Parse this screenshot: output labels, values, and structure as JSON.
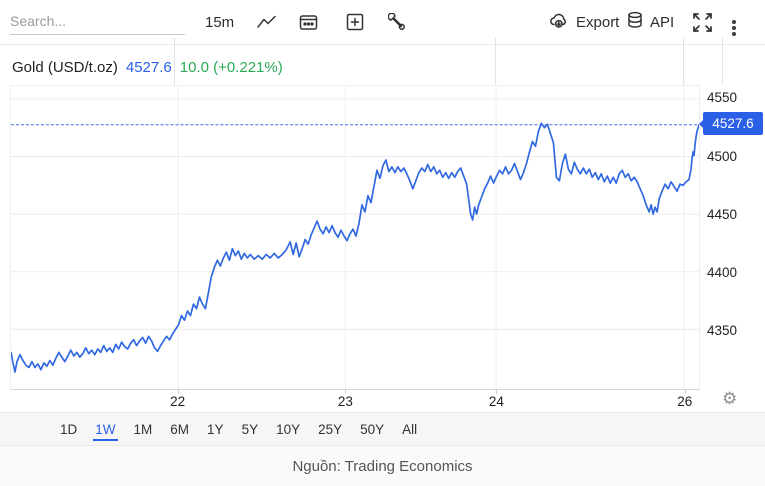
{
  "toolbar": {
    "search_placeholder": "Search...",
    "interval_label": "15m",
    "export_label": "Export",
    "api_label": "API",
    "icons": [
      "line-chart",
      "calendar",
      "add-panel",
      "tools-wrench",
      "export-cloud",
      "api-database",
      "fullscreen",
      "more-options"
    ]
  },
  "header": {
    "instrument": "Gold (USD/t.oz)",
    "price": "4527.6",
    "change": "10.0 (+0.221%)"
  },
  "chart_data": {
    "type": "line",
    "title": "Gold (USD/t.oz)",
    "interval": "15m",
    "range": "1W",
    "last_price": 4527.6,
    "change": 10.0,
    "change_pct": "+0.221%",
    "ylim": [
      4298.3,
      4561.2
    ],
    "y_ticks": [
      4550,
      4500,
      4450,
      4400,
      4350
    ],
    "x_ticks": [
      {
        "label": "22",
        "f": 0.243
      },
      {
        "label": "23",
        "f": 0.486
      },
      {
        "label": "24",
        "f": 0.705
      },
      {
        "label": "26",
        "f": 0.978
      }
    ],
    "grid": true,
    "dashed_last_price_line": true,
    "line_color": "#3169e0",
    "accent_color": "#2b5fe8",
    "up_color": "#2aab56",
    "series": [
      [
        0,
        4330
      ],
      [
        2,
        4321
      ],
      [
        4,
        4313
      ],
      [
        6,
        4322
      ],
      [
        9,
        4328
      ],
      [
        12,
        4323
      ],
      [
        15,
        4319
      ],
      [
        18,
        4317
      ],
      [
        21,
        4322
      ],
      [
        24,
        4317
      ],
      [
        27,
        4320
      ],
      [
        30,
        4315
      ],
      [
        33,
        4321
      ],
      [
        36,
        4318
      ],
      [
        39,
        4323
      ],
      [
        42,
        4319
      ],
      [
        45,
        4325
      ],
      [
        48,
        4330
      ],
      [
        51,
        4326
      ],
      [
        54,
        4322
      ],
      [
        57,
        4327
      ],
      [
        60,
        4332
      ],
      [
        63,
        4327
      ],
      [
        66,
        4330
      ],
      [
        69,
        4326
      ],
      [
        72,
        4329
      ],
      [
        75,
        4334
      ],
      [
        78,
        4329
      ],
      [
        81,
        4332
      ],
      [
        84,
        4328
      ],
      [
        87,
        4333
      ],
      [
        90,
        4330
      ],
      [
        93,
        4336
      ],
      [
        96,
        4331
      ],
      [
        99,
        4334
      ],
      [
        102,
        4330
      ],
      [
        105,
        4337
      ],
      [
        108,
        4333
      ],
      [
        111,
        4339
      ],
      [
        114,
        4335
      ],
      [
        117,
        4333
      ],
      [
        120,
        4338
      ],
      [
        123,
        4341
      ],
      [
        126,
        4336
      ],
      [
        129,
        4340
      ],
      [
        132,
        4343
      ],
      [
        135,
        4338
      ],
      [
        138,
        4344
      ],
      [
        141,
        4340
      ],
      [
        144,
        4334
      ],
      [
        147,
        4331
      ],
      [
        150,
        4336
      ],
      [
        153,
        4340
      ],
      [
        156,
        4344
      ],
      [
        159,
        4341
      ],
      [
        162,
        4346
      ],
      [
        165,
        4350
      ],
      [
        168,
        4354
      ],
      [
        171,
        4362
      ],
      [
        174,
        4358
      ],
      [
        177,
        4366
      ],
      [
        180,
        4362
      ],
      [
        183,
        4372
      ],
      [
        186,
        4368
      ],
      [
        189,
        4378
      ],
      [
        192,
        4372
      ],
      [
        195,
        4368
      ],
      [
        198,
        4382
      ],
      [
        201,
        4396
      ],
      [
        204,
        4404
      ],
      [
        207,
        4410
      ],
      [
        210,
        4405
      ],
      [
        213,
        4412
      ],
      [
        216,
        4417
      ],
      [
        219,
        4410
      ],
      [
        222,
        4420
      ],
      [
        225,
        4414
      ],
      [
        228,
        4418
      ],
      [
        231,
        4411
      ],
      [
        234,
        4416
      ],
      [
        237,
        4412
      ],
      [
        240,
        4415
      ],
      [
        244,
        4411
      ],
      [
        248,
        4414
      ],
      [
        252,
        4411
      ],
      [
        256,
        4415
      ],
      [
        260,
        4412
      ],
      [
        264,
        4416
      ],
      [
        268,
        4412
      ],
      [
        272,
        4415
      ],
      [
        276,
        4419
      ],
      [
        280,
        4426
      ],
      [
        283,
        4415
      ],
      [
        286,
        4425
      ],
      [
        289,
        4413
      ],
      [
        292,
        4420
      ],
      [
        295,
        4428
      ],
      [
        298,
        4424
      ],
      [
        301,
        4432
      ],
      [
        304,
        4438
      ],
      [
        307,
        4444
      ],
      [
        310,
        4437
      ],
      [
        313,
        4433
      ],
      [
        316,
        4439
      ],
      [
        319,
        4434
      ],
      [
        322,
        4440
      ],
      [
        325,
        4434
      ],
      [
        328,
        4430
      ],
      [
        331,
        4436
      ],
      [
        334,
        4431
      ],
      [
        337,
        4427
      ],
      [
        340,
        4433
      ],
      [
        343,
        4437
      ],
      [
        346,
        4431
      ],
      [
        349,
        4442
      ],
      [
        352,
        4458
      ],
      [
        355,
        4452
      ],
      [
        358,
        4466
      ],
      [
        361,
        4460
      ],
      [
        364,
        4474
      ],
      [
        367,
        4488
      ],
      [
        370,
        4481
      ],
      [
        373,
        4492
      ],
      [
        376,
        4497
      ],
      [
        379,
        4487
      ],
      [
        382,
        4491
      ],
      [
        385,
        4486
      ],
      [
        388,
        4491
      ],
      [
        391,
        4487
      ],
      [
        394,
        4490
      ],
      [
        397,
        4485
      ],
      [
        400,
        4479
      ],
      [
        403,
        4472
      ],
      [
        406,
        4479
      ],
      [
        409,
        4486
      ],
      [
        412,
        4490
      ],
      [
        415,
        4487
      ],
      [
        418,
        4493
      ],
      [
        421,
        4487
      ],
      [
        424,
        4491
      ],
      [
        427,
        4485
      ],
      [
        430,
        4488
      ],
      [
        433,
        4482
      ],
      [
        436,
        4486
      ],
      [
        439,
        4481
      ],
      [
        442,
        4486
      ],
      [
        445,
        4482
      ],
      [
        448,
        4487
      ],
      [
        451,
        4490
      ],
      [
        454,
        4483
      ],
      [
        457,
        4476
      ],
      [
        459,
        4463
      ],
      [
        461,
        4450
      ],
      [
        463,
        4445
      ],
      [
        465,
        4456
      ],
      [
        467,
        4450
      ],
      [
        469,
        4458
      ],
      [
        472,
        4465
      ],
      [
        475,
        4472
      ],
      [
        478,
        4477
      ],
      [
        481,
        4483
      ],
      [
        484,
        4477
      ],
      [
        487,
        4483
      ],
      [
        490,
        4488
      ],
      [
        493,
        4485
      ],
      [
        496,
        4491
      ],
      [
        499,
        4485
      ],
      [
        502,
        4488
      ],
      [
        505,
        4494
      ],
      [
        508,
        4487
      ],
      [
        511,
        4480
      ],
      [
        514,
        4486
      ],
      [
        517,
        4494
      ],
      [
        520,
        4504
      ],
      [
        523,
        4513
      ],
      [
        526,
        4509
      ],
      [
        529,
        4522
      ],
      [
        532,
        4529
      ],
      [
        535,
        4525
      ],
      [
        538,
        4528
      ],
      [
        541,
        4520
      ],
      [
        544,
        4512
      ],
      [
        547,
        4482
      ],
      [
        550,
        4479
      ],
      [
        553,
        4494
      ],
      [
        556,
        4502
      ],
      [
        559,
        4489
      ],
      [
        562,
        4485
      ],
      [
        565,
        4495
      ],
      [
        568,
        4489
      ],
      [
        571,
        4485
      ],
      [
        574,
        4490
      ],
      [
        577,
        4485
      ],
      [
        580,
        4489
      ],
      [
        583,
        4482
      ],
      [
        586,
        4486
      ],
      [
        589,
        4480
      ],
      [
        592,
        4485
      ],
      [
        595,
        4478
      ],
      [
        598,
        4483
      ],
      [
        601,
        4477
      ],
      [
        604,
        4482
      ],
      [
        607,
        4477
      ],
      [
        610,
        4485
      ],
      [
        613,
        4488
      ],
      [
        616,
        4482
      ],
      [
        619,
        4485
      ],
      [
        622,
        4479
      ],
      [
        625,
        4482
      ],
      [
        628,
        4478
      ],
      [
        631,
        4472
      ],
      [
        634,
        4466
      ],
      [
        637,
        4458
      ],
      [
        640,
        4452
      ],
      [
        642,
        4458
      ],
      [
        644,
        4450
      ],
      [
        646,
        4456
      ],
      [
        648,
        4452
      ],
      [
        650,
        4463
      ],
      [
        653,
        4470
      ],
      [
        656,
        4476
      ],
      [
        659,
        4472
      ],
      [
        662,
        4478
      ],
      [
        665,
        4474
      ],
      [
        668,
        4470
      ],
      [
        671,
        4476
      ],
      [
        674,
        4475
      ],
      [
        677,
        4478
      ],
      [
        680,
        4480
      ],
      [
        682,
        4489
      ],
      [
        683,
        4498
      ],
      [
        684,
        4504
      ],
      [
        685,
        4501
      ],
      [
        686,
        4510
      ],
      [
        687,
        4517
      ],
      [
        688,
        4522
      ],
      [
        690,
        4527.6
      ]
    ]
  },
  "timeframes": {
    "items": [
      "1D",
      "1W",
      "1M",
      "6M",
      "1Y",
      "5Y",
      "10Y",
      "25Y",
      "50Y",
      "All"
    ],
    "active": "1W"
  },
  "footer": {
    "source": "Nguồn: Trading Economics"
  }
}
